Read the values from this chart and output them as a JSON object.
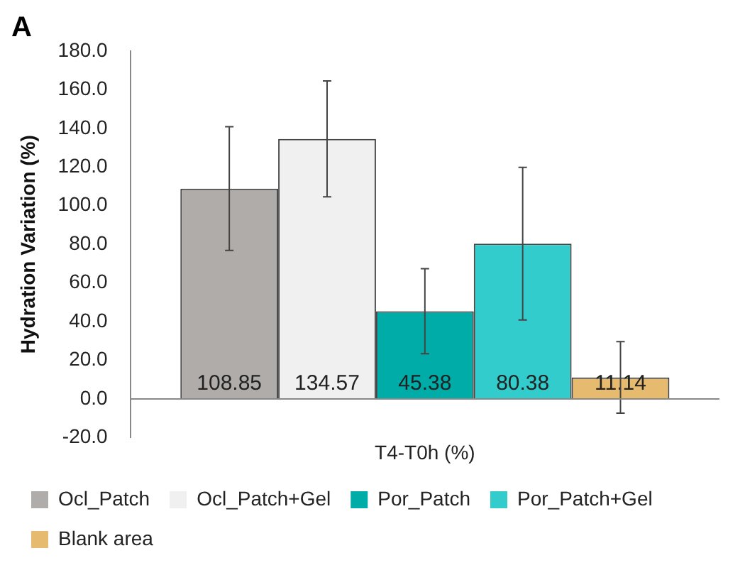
{
  "chart_data": {
    "type": "bar",
    "title": "A",
    "ylabel": "Hydration Variation (%)",
    "categories": [
      "T4-T0h (%)"
    ],
    "series": [
      {
        "name": "Ocl_Patch",
        "color": "#b0acaa",
        "values": [
          108.85
        ],
        "errors": [
          32
        ]
      },
      {
        "name": "Ocl_Patch+Gel",
        "color": "#f0f0f0",
        "values": [
          134.57
        ],
        "errors": [
          30
        ]
      },
      {
        "name": "Por_Patch",
        "color": "#00aca8",
        "values": [
          45.38
        ],
        "errors": [
          22
        ]
      },
      {
        "name": "Por_Patch+Gel",
        "color": "#33cccc",
        "values": [
          80.38
        ],
        "errors": [
          39.5
        ]
      },
      {
        "name": "Blank area",
        "color": "#e6bb70",
        "values": [
          11.14
        ],
        "errors": [
          18.5
        ]
      }
    ],
    "data_labels": true,
    "ylim": [
      -20,
      180
    ],
    "yticks": [
      {
        "value": -20,
        "label": "-20.0"
      },
      {
        "value": 0,
        "label": "0.0"
      },
      {
        "value": 20,
        "label": "20.0"
      },
      {
        "value": 40,
        "label": "40.0"
      },
      {
        "value": 60,
        "label": "60.0"
      },
      {
        "value": 80,
        "label": "80.0"
      },
      {
        "value": 100,
        "label": "100.0"
      },
      {
        "value": 120,
        "label": "120.0"
      },
      {
        "value": 140,
        "label": "140.0"
      },
      {
        "value": 160,
        "label": "160.0"
      },
      {
        "value": 180,
        "label": "180.0"
      }
    ],
    "grid": false,
    "ref_lines": [
      {
        "axis": "y",
        "value": 0,
        "color": "#888888"
      }
    ],
    "legend": "bottom"
  }
}
